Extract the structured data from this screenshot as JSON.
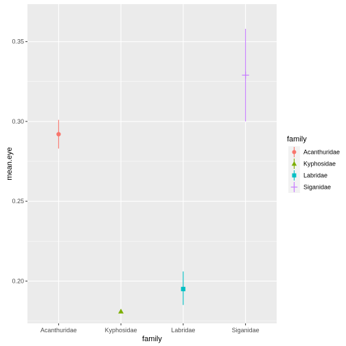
{
  "chart_data": {
    "type": "scatter",
    "xlabel": "family",
    "ylabel": "mean.eye",
    "categories": [
      "Acanthuridae",
      "Kyphosidae",
      "Labridae",
      "Siganidae"
    ],
    "ylim": [
      0.1735,
      0.3735
    ],
    "yticks": [
      0.2,
      0.25,
      0.3,
      0.35
    ],
    "ytick_labels": [
      "0.20",
      "0.25",
      "0.30",
      "0.35"
    ],
    "grid": true,
    "legend": {
      "title": "family",
      "position": "right",
      "entries": [
        "Acanthuridae",
        "Kyphosidae",
        "Labridae",
        "Siganidae"
      ]
    },
    "series": [
      {
        "name": "Acanthuridae",
        "mean": 0.292,
        "lower": 0.283,
        "upper": 0.301,
        "shape": "circle",
        "color": "#F8766D"
      },
      {
        "name": "Kyphosidae",
        "mean": 0.181,
        "lower": 0.181,
        "upper": 0.181,
        "shape": "triangle",
        "color": "#7CAE00"
      },
      {
        "name": "Labridae",
        "mean": 0.195,
        "lower": 0.185,
        "upper": 0.206,
        "shape": "square",
        "color": "#00BFC4"
      },
      {
        "name": "Siganidae",
        "mean": 0.329,
        "lower": 0.3,
        "upper": 0.358,
        "shape": "plus",
        "color": "#C77CFF"
      }
    ]
  }
}
